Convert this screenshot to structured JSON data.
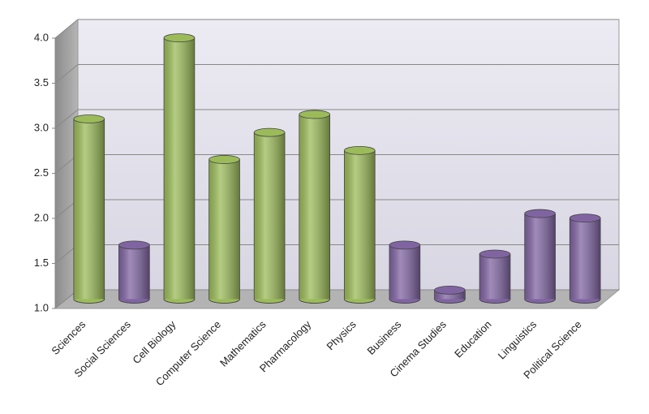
{
  "chart_data": {
    "type": "bar",
    "categories": [
      "Sciences",
      "Social Sciences",
      "Cell Biology",
      "Computer Science",
      "Mathematics",
      "Pharmacology",
      "Physics",
      "Business",
      "Cinema Studies",
      "Education",
      "Linguistics",
      "Political Science"
    ],
    "values": [
      3.0,
      1.6,
      3.9,
      2.55,
      2.85,
      3.05,
      2.65,
      1.6,
      1.1,
      1.5,
      1.95,
      1.9
    ],
    "colors": [
      "#9bbb59",
      "#8064a2",
      "#9bbb59",
      "#9bbb59",
      "#9bbb59",
      "#9bbb59",
      "#9bbb59",
      "#8064a2",
      "#8064a2",
      "#8064a2",
      "#8064a2",
      "#8064a2"
    ],
    "ylim": [
      1,
      4
    ],
    "yticks": [
      {
        "value": 1,
        "label": "1.0"
      },
      {
        "value": 1.5,
        "label": "1.5"
      },
      {
        "value": 2,
        "label": "2.0"
      },
      {
        "value": 2.5,
        "label": "2.5"
      },
      {
        "value": 3,
        "label": "3.0"
      },
      {
        "value": 3.5,
        "label": "3.5"
      },
      {
        "value": 4,
        "label": "4.0"
      }
    ],
    "grid": true
  }
}
